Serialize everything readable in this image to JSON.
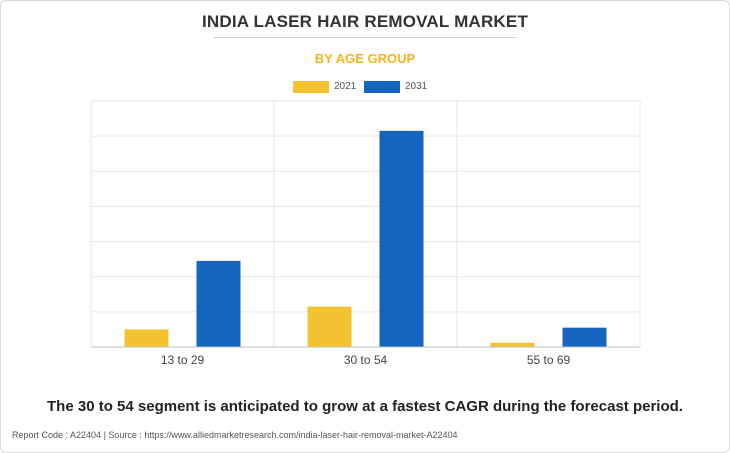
{
  "title": "INDIA LASER HAIR REMOVAL MARKET",
  "subtitle": "BY AGE GROUP",
  "caption": "The 30 to 54 segment is anticipated to grow at a fastest CAGR during the forecast period.",
  "footer": "Report Code : A22404  |  Source : https://www.alliedmarketresearch.com/india-laser-hair-removal-market-A22404",
  "colors": {
    "2021": "#f4c430",
    "2031": "#1565c0",
    "subtitle": "#f4b41a"
  },
  "chart_data": {
    "type": "bar",
    "title": "INDIA LASER HAIR REMOVAL MARKET",
    "subtitle": "BY AGE GROUP",
    "categories": [
      "13 to 29",
      "30 to 54",
      "55 to 69"
    ],
    "series": [
      {
        "name": "2021",
        "values": [
          5,
          11.5,
          1.2
        ]
      },
      {
        "name": "2031",
        "values": [
          24.5,
          61.5,
          5.5
        ]
      }
    ],
    "ylim": [
      0,
      70
    ],
    "grid": true,
    "legend": "top-center",
    "xlabel": "",
    "ylabel": ""
  }
}
